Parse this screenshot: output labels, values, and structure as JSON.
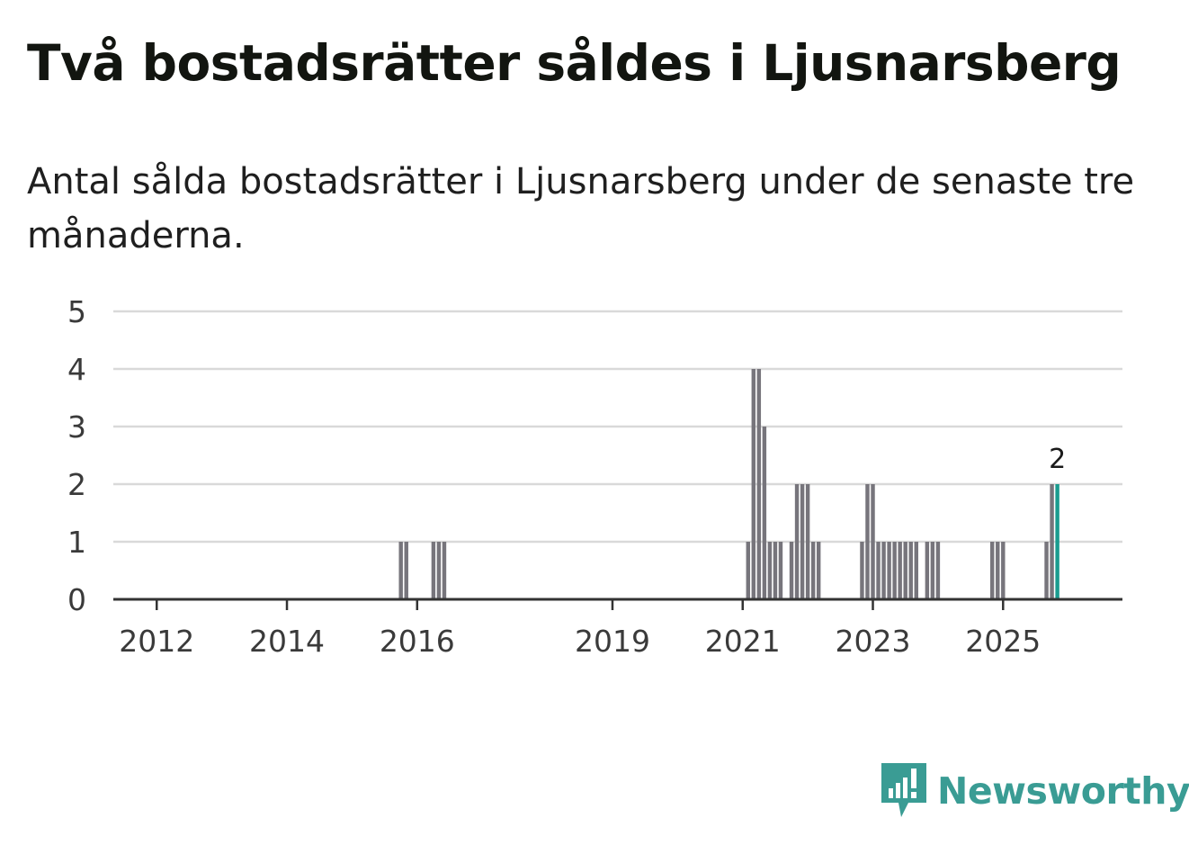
{
  "header": {
    "title": "Två bostadsrätter såldes i Ljusnarsberg",
    "subtitle": "Antal sålda bostadsrätter i Ljusnarsberg under de senaste tre månaderna."
  },
  "brand": {
    "name": "Newsworthy",
    "logo_icon": "newsworthy-chart-bubble-icon",
    "color": "#3a9c94"
  },
  "colors": {
    "bar": "#77757c",
    "highlight": "#1a9c8f",
    "grid": "#d9d9d9",
    "axis": "#333333"
  },
  "chart_data": {
    "type": "bar",
    "title": "Två bostadsrätter såldes i Ljusnarsberg",
    "subtitle": "Antal sålda bostadsrätter i Ljusnarsberg under de senaste tre månaderna.",
    "xlabel": "",
    "ylabel": "",
    "x_unit": "month",
    "xlim": [
      "2011-05",
      "2026-11"
    ],
    "ylim": [
      0,
      5
    ],
    "y_ticks": [
      0,
      1,
      2,
      3,
      4,
      5
    ],
    "x_ticks": [
      {
        "label": "2012",
        "month": "2012-01"
      },
      {
        "label": "2014",
        "month": "2014-01"
      },
      {
        "label": "2016",
        "month": "2016-01"
      },
      {
        "label": "2019",
        "month": "2019-01"
      },
      {
        "label": "2021",
        "month": "2021-01"
      },
      {
        "label": "2023",
        "month": "2023-01"
      },
      {
        "label": "2025",
        "month": "2025-01"
      }
    ],
    "grid": true,
    "series": [
      {
        "name": "Sålda bostadsrätter",
        "points": [
          {
            "month": "2015-10",
            "value": 1
          },
          {
            "month": "2015-11",
            "value": 1
          },
          {
            "month": "2016-04",
            "value": 1
          },
          {
            "month": "2016-05",
            "value": 1
          },
          {
            "month": "2016-06",
            "value": 1
          },
          {
            "month": "2021-02",
            "value": 1
          },
          {
            "month": "2021-03",
            "value": 4
          },
          {
            "month": "2021-04",
            "value": 4
          },
          {
            "month": "2021-05",
            "value": 3
          },
          {
            "month": "2021-06",
            "value": 1
          },
          {
            "month": "2021-07",
            "value": 1
          },
          {
            "month": "2021-08",
            "value": 1
          },
          {
            "month": "2021-10",
            "value": 1
          },
          {
            "month": "2021-11",
            "value": 2
          },
          {
            "month": "2021-12",
            "value": 2
          },
          {
            "month": "2022-01",
            "value": 2
          },
          {
            "month": "2022-02",
            "value": 1
          },
          {
            "month": "2022-03",
            "value": 1
          },
          {
            "month": "2022-11",
            "value": 1
          },
          {
            "month": "2022-12",
            "value": 2
          },
          {
            "month": "2023-01",
            "value": 2
          },
          {
            "month": "2023-02",
            "value": 1
          },
          {
            "month": "2023-03",
            "value": 1
          },
          {
            "month": "2023-04",
            "value": 1
          },
          {
            "month": "2023-05",
            "value": 1
          },
          {
            "month": "2023-06",
            "value": 1
          },
          {
            "month": "2023-07",
            "value": 1
          },
          {
            "month": "2023-08",
            "value": 1
          },
          {
            "month": "2023-09",
            "value": 1
          },
          {
            "month": "2023-11",
            "value": 1
          },
          {
            "month": "2023-12",
            "value": 1
          },
          {
            "month": "2024-01",
            "value": 1
          },
          {
            "month": "2024-11",
            "value": 1
          },
          {
            "month": "2024-12",
            "value": 1
          },
          {
            "month": "2025-01",
            "value": 1
          },
          {
            "month": "2025-09",
            "value": 1
          },
          {
            "month": "2025-10",
            "value": 2
          },
          {
            "month": "2025-11",
            "value": 2,
            "highlight": true,
            "label": "2"
          }
        ]
      }
    ]
  }
}
